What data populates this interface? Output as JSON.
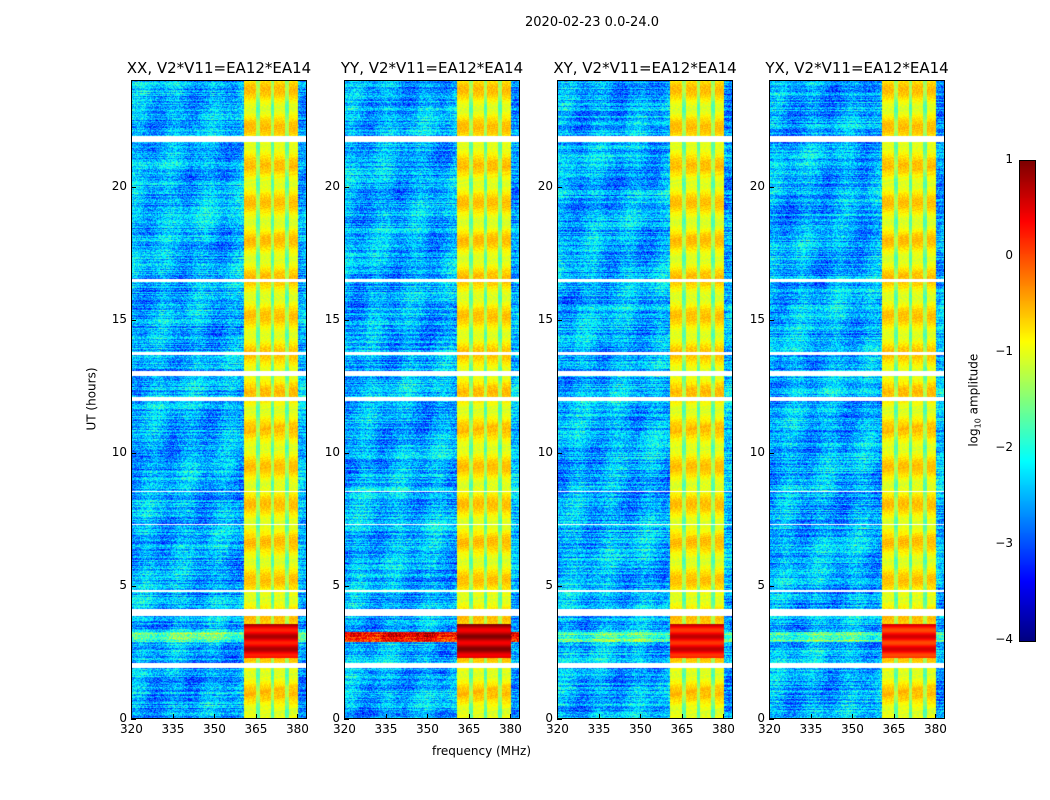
{
  "chart_data": {
    "type": "heatmap",
    "title": "2020-02-23 0.0-24.0",
    "xlabel": "frequency (MHz)",
    "ylabel": "UT (hours)",
    "xlim": [
      320,
      383.6
    ],
    "ylim": [
      0,
      24
    ],
    "xticks": [
      "320",
      "335",
      "350",
      "365",
      "380"
    ],
    "yticks": [
      "0",
      "5",
      "10",
      "15",
      "20"
    ],
    "panels": [
      {
        "title": "XX, V2*V11=EA12*EA14",
        "rfi_peak": 0.5
      },
      {
        "title": "YY, V2*V11=EA12*EA14",
        "rfi_peak": 0.7
      },
      {
        "title": "XY, V2*V11=EA12*EA14",
        "rfi_peak": 0.4
      },
      {
        "title": "YX, V2*V11=EA12*EA14",
        "rfi_peak": 0.3
      }
    ],
    "bright_band_mhz": [
      360.5,
      380
    ],
    "band_notches_mhz": [
      365.7,
      371,
      376.2
    ],
    "background_log_amplitude": -2.5,
    "band_log_amplitude": -0.8,
    "strong_rfi_ut": [
      2.3,
      3.6
    ],
    "flagged_ut_ranges": [
      [
        1.95,
        2.12
      ],
      [
        3.88,
        4.15
      ],
      [
        4.8,
        4.85
      ],
      [
        7.3,
        7.36
      ],
      [
        8.55,
        8.6
      ],
      [
        11.95,
        12.12
      ],
      [
        12.9,
        13.1
      ],
      [
        13.7,
        13.8
      ],
      [
        16.45,
        16.55
      ],
      [
        21.7,
        21.9
      ]
    ],
    "colorbar": {
      "label_main": "log",
      "label_sub": "10",
      "label_rest": " amplitude",
      "range": [
        -4,
        1
      ],
      "ticks": [
        "1",
        "0",
        "−1",
        "−2",
        "−3",
        "−4"
      ],
      "colormap": "jet"
    }
  }
}
